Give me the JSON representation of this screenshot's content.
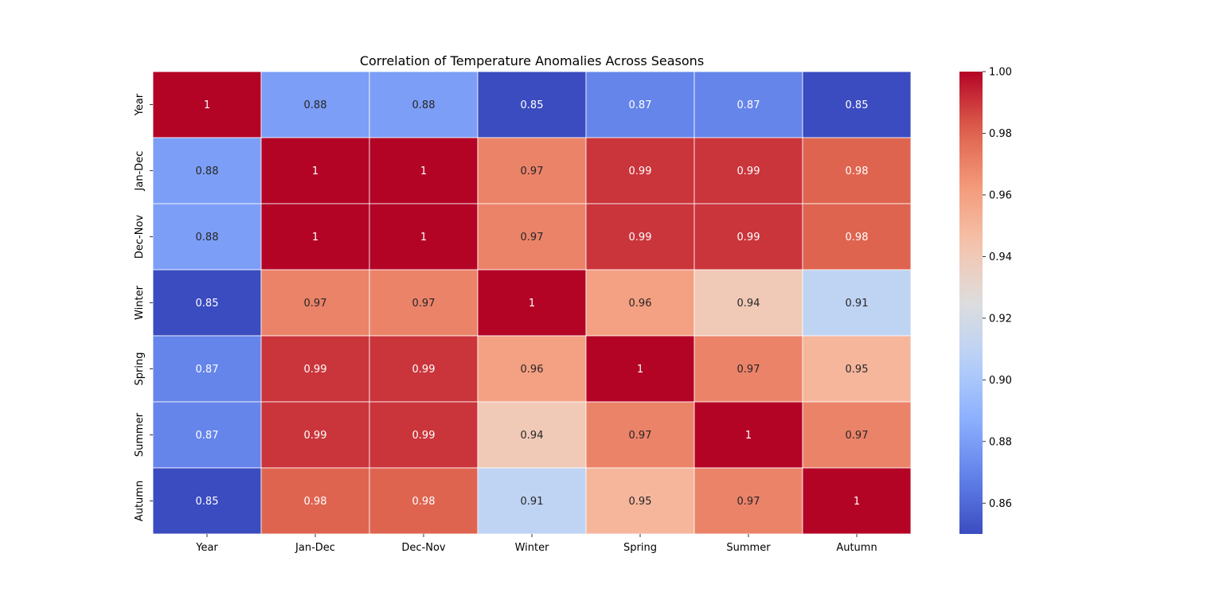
{
  "chart_data": {
    "type": "heatmap",
    "title": "Correlation of Temperature Anomalies Across Seasons",
    "xlabel": "",
    "ylabel": "",
    "colormap": "coolwarm",
    "x_categories": [
      "Year",
      "Jan-Dec",
      "Dec-Nov",
      "Winter",
      "Spring",
      "Summer",
      "Autumn"
    ],
    "y_categories": [
      "Year",
      "Jan-Dec",
      "Dec-Nov",
      "Winter",
      "Spring",
      "Summer",
      "Autumn"
    ],
    "values": [
      [
        1.0,
        0.88,
        0.88,
        0.85,
        0.87,
        0.87,
        0.85
      ],
      [
        0.88,
        1.0,
        1.0,
        0.97,
        0.99,
        0.99,
        0.98
      ],
      [
        0.88,
        1.0,
        1.0,
        0.97,
        0.99,
        0.99,
        0.98
      ],
      [
        0.85,
        0.97,
        0.97,
        1.0,
        0.96,
        0.94,
        0.91
      ],
      [
        0.87,
        0.99,
        0.99,
        0.96,
        1.0,
        0.97,
        0.95
      ],
      [
        0.87,
        0.99,
        0.99,
        0.94,
        0.97,
        1.0,
        0.97
      ],
      [
        0.85,
        0.98,
        0.98,
        0.91,
        0.95,
        0.97,
        1.0
      ]
    ],
    "annotations": [
      [
        "1",
        "0.88",
        "0.88",
        "0.85",
        "0.87",
        "0.87",
        "0.85"
      ],
      [
        "0.88",
        "1",
        "1",
        "0.97",
        "0.99",
        "0.99",
        "0.98"
      ],
      [
        "0.88",
        "1",
        "1",
        "0.97",
        "0.99",
        "0.99",
        "0.98"
      ],
      [
        "0.85",
        "0.97",
        "0.97",
        "1",
        "0.96",
        "0.94",
        "0.91"
      ],
      [
        "0.87",
        "0.99",
        "0.99",
        "0.96",
        "1",
        "0.97",
        "0.95"
      ],
      [
        "0.87",
        "0.99",
        "0.99",
        "0.94",
        "0.97",
        "1",
        "0.97"
      ],
      [
        "0.85",
        "0.98",
        "0.98",
        "0.91",
        "0.95",
        "0.97",
        "1"
      ]
    ],
    "colorbar": {
      "vmin": 0.85,
      "vmax": 1.0,
      "ticks": [
        0.86,
        0.88,
        0.9,
        0.92,
        0.94,
        0.96,
        0.98,
        1.0
      ],
      "tick_labels": [
        "0.86",
        "0.88",
        "0.90",
        "0.92",
        "0.94",
        "0.96",
        "0.98",
        "1.00"
      ]
    }
  }
}
